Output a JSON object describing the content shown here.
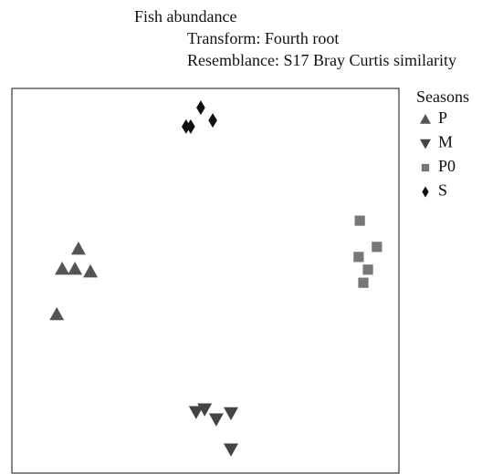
{
  "chart_data": {
    "type": "scatter",
    "title": "Fish abundance",
    "subtitle": [
      "Transform: Fourth root",
      "Resemblance: S17 Bray Curtis similarity"
    ],
    "legend_title": "Seasons",
    "xlim": [
      0,
      100
    ],
    "ylim": [
      0,
      100
    ],
    "series": [
      {
        "name": "P",
        "color": "#555555",
        "marker": "triangle-up",
        "x": [
          17.2,
          13.0,
          16.3,
          20.3,
          11.6
        ],
        "y": [
          58.4,
          53.2,
          53.2,
          52.5,
          41.4
        ]
      },
      {
        "name": "M",
        "color": "#444444",
        "marker": "triangle-down",
        "x": [
          47.6,
          49.8,
          52.8,
          56.6,
          56.6
        ],
        "y": [
          16.1,
          16.8,
          14.2,
          15.8,
          6.4
        ]
      },
      {
        "name": "P0",
        "color": "#777777",
        "marker": "square",
        "x": [
          89.9,
          94.3,
          89.6,
          92.0,
          90.8
        ],
        "y": [
          65.7,
          58.9,
          56.3,
          53.0,
          49.6
        ]
      },
      {
        "name": "S",
        "color": "#111111",
        "marker": "diamond",
        "x": [
          48.8,
          51.9,
          45.0,
          46.2
        ],
        "y": [
          95.0,
          91.7,
          90.1,
          90.1
        ]
      }
    ]
  }
}
